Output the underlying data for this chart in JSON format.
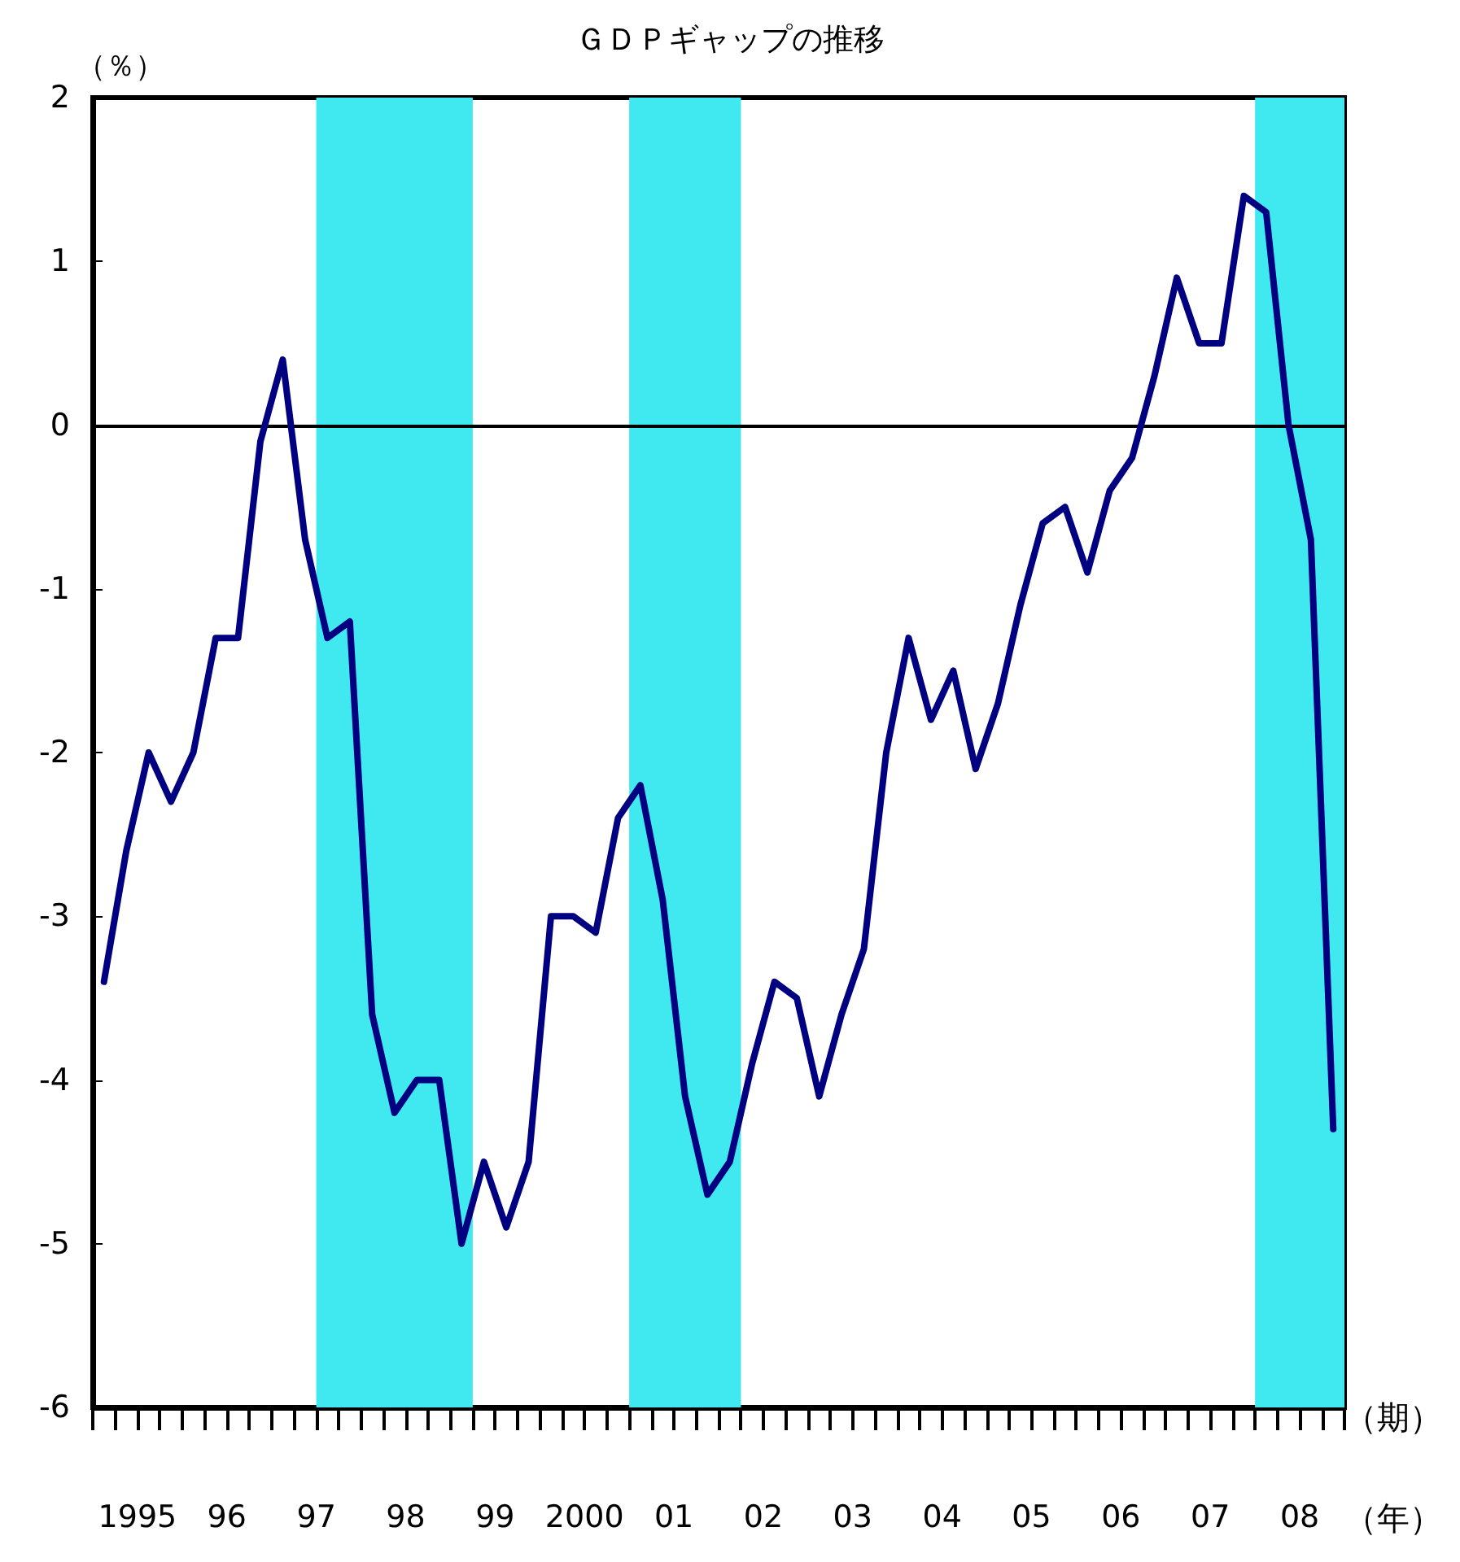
{
  "chart_data": {
    "type": "line",
    "title": "ＧＤＰギャップの推移",
    "ylabel": "（％）",
    "annotations": [
      "（期）",
      "（年）"
    ],
    "x": [
      1994.625,
      1994.875,
      1995.125,
      1995.375,
      1995.625,
      1995.875,
      1996.125,
      1996.375,
      1996.625,
      1996.875,
      1997.125,
      1997.375,
      1997.625,
      1997.875,
      1998.125,
      1998.375,
      1998.625,
      1998.875,
      1999.125,
      1999.375,
      1999.625,
      1999.875,
      2000.125,
      2000.375,
      2000.625,
      2000.875,
      2001.125,
      2001.375,
      2001.625,
      2001.875,
      2002.125,
      2002.375,
      2002.625,
      2002.875,
      2003.125,
      2003.375,
      2003.625,
      2003.875,
      2004.125,
      2004.375,
      2004.625,
      2004.875,
      2005.125,
      2005.375,
      2005.625,
      2005.875,
      2006.125,
      2006.375,
      2006.625,
      2006.875,
      2007.125,
      2007.375,
      2007.625,
      2007.875,
      2008.125,
      2008.375
    ],
    "series": [
      {
        "color": "#000080",
        "values": [
          -3.4,
          -2.6,
          -2.0,
          -2.3,
          -2.0,
          -1.3,
          -1.3,
          -0.1,
          0.4,
          -0.7,
          -1.3,
          -1.2,
          -3.6,
          -4.2,
          -4.0,
          -4.0,
          -5.0,
          -4.5,
          -4.9,
          -4.5,
          -3.0,
          -3.0,
          -3.1,
          -2.4,
          -2.2,
          -2.9,
          -4.1,
          -4.7,
          -4.5,
          -3.9,
          -3.4,
          -3.5,
          -4.1,
          -3.6,
          -3.2,
          -2.0,
          -1.3,
          -1.8,
          -1.5,
          -2.1,
          -1.7,
          -1.1,
          -0.6,
          -0.5,
          -0.9,
          -0.4,
          -0.2,
          0.3,
          0.9,
          0.5,
          0.5,
          1.4,
          1.3,
          0.0,
          -0.7,
          -4.3
        ]
      }
    ],
    "xlim": [
      1994.5,
      2008.5
    ],
    "xticks": [
      {
        "value": 1994.5,
        "label": null
      },
      {
        "value": 1994.75,
        "label": null
      },
      {
        "value": 1995,
        "label": "1995"
      },
      {
        "value": 1995.25,
        "label": null
      },
      {
        "value": 1995.5,
        "label": null
      },
      {
        "value": 1995.75,
        "label": null
      },
      {
        "value": 1996,
        "label": "96"
      },
      {
        "value": 1996.25,
        "label": null
      },
      {
        "value": 1996.5,
        "label": null
      },
      {
        "value": 1996.75,
        "label": null
      },
      {
        "value": 1997,
        "label": "97"
      },
      {
        "value": 1997.25,
        "label": null
      },
      {
        "value": 1997.5,
        "label": null
      },
      {
        "value": 1997.75,
        "label": null
      },
      {
        "value": 1998,
        "label": "98"
      },
      {
        "value": 1998.25,
        "label": null
      },
      {
        "value": 1998.5,
        "label": null
      },
      {
        "value": 1998.75,
        "label": null
      },
      {
        "value": 1999,
        "label": "99"
      },
      {
        "value": 1999.25,
        "label": null
      },
      {
        "value": 1999.5,
        "label": null
      },
      {
        "value": 1999.75,
        "label": null
      },
      {
        "value": 2000,
        "label": "2000"
      },
      {
        "value": 2000.25,
        "label": null
      },
      {
        "value": 2000.5,
        "label": null
      },
      {
        "value": 2000.75,
        "label": null
      },
      {
        "value": 2001,
        "label": "01"
      },
      {
        "value": 2001.25,
        "label": null
      },
      {
        "value": 2001.5,
        "label": null
      },
      {
        "value": 2001.75,
        "label": null
      },
      {
        "value": 2002,
        "label": "02"
      },
      {
        "value": 2002.25,
        "label": null
      },
      {
        "value": 2002.5,
        "label": null
      },
      {
        "value": 2002.75,
        "label": null
      },
      {
        "value": 2003,
        "label": "03"
      },
      {
        "value": 2003.25,
        "label": null
      },
      {
        "value": 2003.5,
        "label": null
      },
      {
        "value": 2003.75,
        "label": null
      },
      {
        "value": 2004,
        "label": "04"
      },
      {
        "value": 2004.25,
        "label": null
      },
      {
        "value": 2004.5,
        "label": null
      },
      {
        "value": 2004.75,
        "label": null
      },
      {
        "value": 2005,
        "label": "05"
      },
      {
        "value": 2005.25,
        "label": null
      },
      {
        "value": 2005.5,
        "label": null
      },
      {
        "value": 2005.75,
        "label": null
      },
      {
        "value": 2006,
        "label": "06"
      },
      {
        "value": 2006.25,
        "label": null
      },
      {
        "value": 2006.5,
        "label": null
      },
      {
        "value": 2006.75,
        "label": null
      },
      {
        "value": 2007,
        "label": "07"
      },
      {
        "value": 2007.25,
        "label": null
      },
      {
        "value": 2007.5,
        "label": null
      },
      {
        "value": 2007.75,
        "label": null
      },
      {
        "value": 2008,
        "label": "08"
      },
      {
        "value": 2008.25,
        "label": null
      },
      {
        "value": 2008.5,
        "label": null
      }
    ],
    "ylim": [
      -6,
      2
    ],
    "yticks": [
      -6,
      -5,
      -4,
      -3,
      -2,
      -1,
      0,
      1,
      2
    ],
    "ref_lines": [
      {
        "axis": "y",
        "value": 0,
        "color": "#000000"
      }
    ],
    "bands": [
      {
        "axis": "x",
        "from": 1997,
        "to": 1998.75,
        "color": "#40e8f0"
      },
      {
        "axis": "x",
        "from": 2000.5,
        "to": 2001.75,
        "color": "#40e8f0"
      },
      {
        "axis": "x",
        "from": 2007.5,
        "to": 2008.5,
        "color": "#40e8f0"
      }
    ],
    "grid": false,
    "marker": "none",
    "line_style": "solid"
  }
}
